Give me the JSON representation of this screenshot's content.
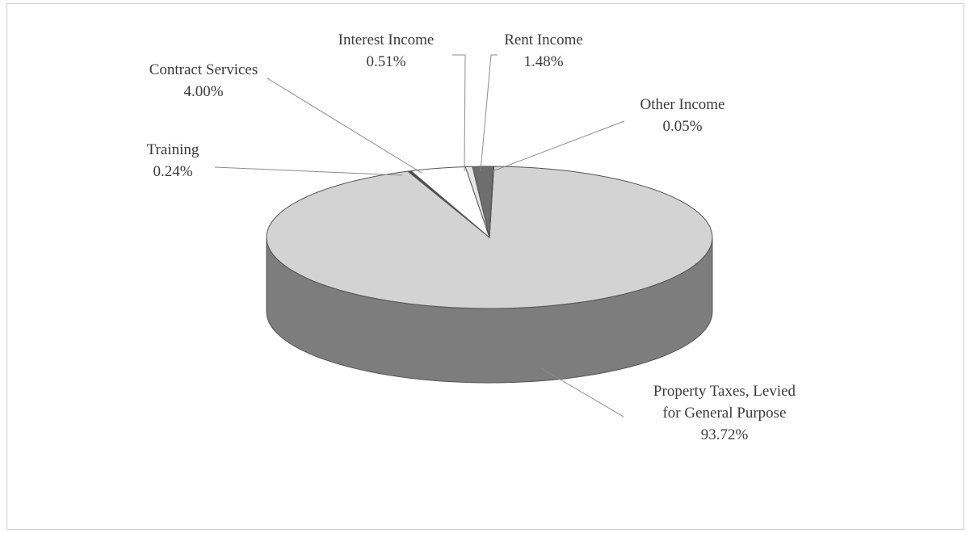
{
  "chart_data": {
    "type": "pie",
    "title": "",
    "slices": [
      {
        "name": "Property Taxes, Levied for General Purpose",
        "label_lines": [
          "Property Taxes, Levied",
          "for General Purpose"
        ],
        "value": 93.72,
        "value_label": "93.72%",
        "color": "#d3d3d3",
        "side_color": "#7d7d7d"
      },
      {
        "name": "Training",
        "label_lines": [
          "Training"
        ],
        "value": 0.24,
        "value_label": "0.24%",
        "color": "#4a4a4a",
        "side_color": "#333333"
      },
      {
        "name": "Contract Services",
        "label_lines": [
          "Contract Services"
        ],
        "value": 4.0,
        "value_label": "4.00%",
        "color": "#ffffff",
        "side_color": "#e0e0e0"
      },
      {
        "name": "Interest Income",
        "label_lines": [
          "Interest Income"
        ],
        "value": 0.51,
        "value_label": "0.51%",
        "color": "#e6e6e6",
        "side_color": "#bdbdbd"
      },
      {
        "name": "Rent Income",
        "label_lines": [
          "Rent Income"
        ],
        "value": 1.48,
        "value_label": "1.48%",
        "color": "#6e6e6e",
        "side_color": "#4d4d4d"
      },
      {
        "name": "Other Income",
        "label_lines": [
          "Other Income"
        ],
        "value": 0.05,
        "value_label": "0.05%",
        "color": "#9a9a9a",
        "side_color": "#6a6a6a"
      }
    ],
    "style": "3d-tilted",
    "legend": "none",
    "labels": "outside-with-leader-lines"
  }
}
